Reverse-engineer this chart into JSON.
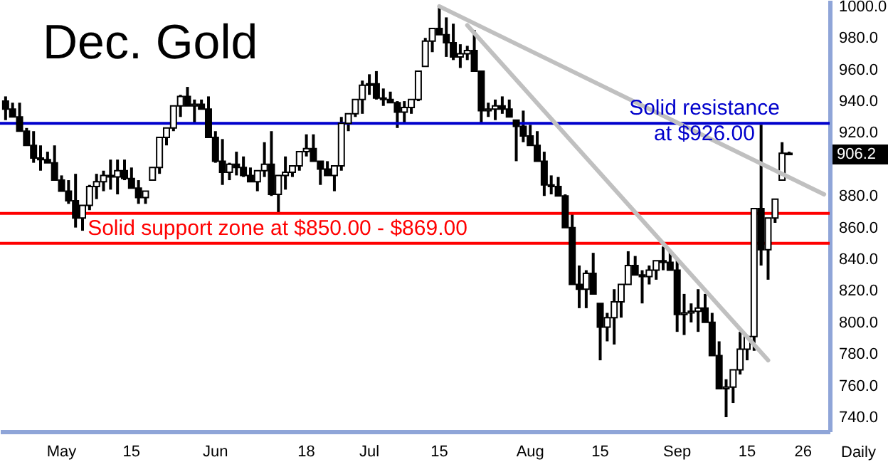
{
  "chart_data": {
    "type": "candlestick",
    "title": "Dec. Gold",
    "xlabel": "Daily",
    "categories": [
      null,
      null,
      null,
      null,
      null,
      null,
      null,
      null,
      "May",
      null,
      null,
      null,
      null,
      null,
      null,
      null,
      null,
      null,
      "15",
      null,
      null,
      null,
      null,
      null,
      null,
      null,
      null,
      null,
      null,
      null,
      "Jun",
      null,
      null,
      null,
      null,
      null,
      null,
      null,
      null,
      null,
      null,
      null,
      null,
      "18",
      null,
      null,
      null,
      null,
      null,
      null,
      null,
      null,
      "Jul",
      null,
      null,
      null,
      null,
      null,
      null,
      null,
      null,
      null,
      "15",
      null,
      null,
      null,
      null,
      null,
      null,
      null,
      null,
      null,
      null,
      null,
      null,
      "Aug",
      null,
      null,
      null,
      null,
      null,
      null,
      null,
      null,
      null,
      "15",
      null,
      null,
      null,
      null,
      null,
      null,
      null,
      null,
      null,
      null,
      "Sep",
      null,
      null,
      null,
      null,
      null,
      null,
      null,
      null,
      null,
      "15",
      null,
      null,
      null,
      null,
      null,
      null,
      null,
      "26",
      null,
      null,
      null
    ],
    "ohlc": [
      [
        940,
        943,
        928,
        935
      ],
      [
        935,
        939,
        930,
        930
      ],
      [
        930,
        939,
        921,
        921
      ],
      [
        921,
        923,
        912,
        912
      ],
      [
        912,
        921,
        901,
        904
      ],
      [
        904,
        912,
        896,
        903
      ],
      [
        903,
        908,
        901,
        901
      ],
      [
        901,
        912,
        890,
        890
      ],
      [
        890,
        893,
        883,
        883
      ],
      [
        883,
        890,
        875,
        877
      ],
      [
        877,
        894,
        860,
        866
      ],
      [
        866,
        874,
        858,
        874
      ],
      [
        874,
        887,
        871,
        886
      ],
      [
        886,
        894,
        878,
        889
      ],
      [
        889,
        896,
        883,
        893
      ],
      [
        893,
        903,
        884,
        892
      ],
      [
        892,
        903,
        881,
        896
      ],
      [
        896,
        903,
        890,
        891
      ],
      [
        891,
        898,
        885,
        885
      ],
      [
        885,
        890,
        875,
        879
      ],
      [
        879,
        883,
        875,
        883
      ],
      [
        890,
        898,
        890,
        898
      ],
      [
        898,
        917,
        894,
        917
      ],
      [
        917,
        923,
        912,
        923
      ],
      [
        923,
        937,
        921,
        937
      ],
      [
        937,
        944,
        930,
        943
      ],
      [
        943,
        949,
        937,
        937
      ],
      [
        937,
        941,
        926,
        938
      ],
      [
        938,
        941,
        935,
        935
      ],
      [
        935,
        943,
        917,
        917
      ],
      [
        917,
        921,
        901,
        902
      ],
      [
        902,
        916,
        887,
        895
      ],
      [
        895,
        901,
        890,
        900
      ],
      [
        900,
        908,
        893,
        898
      ],
      [
        898,
        905,
        892,
        893
      ],
      [
        893,
        898,
        889,
        889
      ],
      [
        889,
        896,
        883,
        896
      ],
      [
        896,
        914,
        892,
        900
      ],
      [
        900,
        921,
        880,
        881
      ],
      [
        881,
        893,
        869,
        893
      ],
      [
        893,
        905,
        884,
        895
      ],
      [
        895,
        899,
        892,
        899
      ],
      [
        899,
        908,
        896,
        908
      ],
      [
        908,
        919,
        905,
        910
      ],
      [
        910,
        919,
        902,
        902
      ],
      [
        902,
        902,
        887,
        897
      ],
      [
        897,
        902,
        893,
        893
      ],
      [
        893,
        899,
        883,
        899
      ],
      [
        899,
        930,
        896,
        926
      ],
      [
        926,
        932,
        921,
        932
      ],
      [
        932,
        941,
        930,
        941
      ],
      [
        941,
        953,
        932,
        950
      ],
      [
        950,
        957,
        944,
        951
      ],
      [
        951,
        959,
        941,
        942
      ],
      [
        942,
        948,
        937,
        941
      ],
      [
        941,
        946,
        939,
        939
      ],
      [
        939,
        940,
        923,
        933
      ],
      [
        933,
        940,
        926,
        936
      ],
      [
        936,
        941,
        932,
        941
      ],
      [
        941,
        959,
        940,
        959
      ],
      [
        962,
        980,
        962,
        978
      ],
      [
        978,
        986,
        971,
        986
      ],
      [
        986,
        1000,
        982,
        982
      ],
      [
        982,
        993,
        968,
        977
      ],
      [
        977,
        989,
        966,
        968
      ],
      [
        968,
        976,
        961,
        970
      ],
      [
        970,
        975,
        966,
        972
      ],
      [
        972,
        985,
        959,
        959
      ],
      [
        959,
        959,
        926,
        934
      ],
      [
        934,
        939,
        930,
        935
      ],
      [
        935,
        941,
        928,
        937
      ],
      [
        937,
        943,
        932,
        935
      ],
      [
        935,
        941,
        930,
        930
      ],
      [
        928,
        928,
        902,
        924
      ],
      [
        924,
        934,
        914,
        918
      ],
      [
        918,
        925,
        912,
        912
      ],
      [
        912,
        921,
        902,
        902
      ],
      [
        902,
        908,
        880,
        887
      ],
      [
        887,
        893,
        881,
        886
      ],
      [
        886,
        892,
        880,
        880
      ],
      [
        880,
        881,
        860,
        860
      ],
      [
        860,
        869,
        824,
        824
      ],
      [
        824,
        836,
        809,
        821
      ],
      [
        821,
        833,
        809,
        831
      ],
      [
        831,
        844,
        818,
        818
      ],
      [
        812,
        812,
        776,
        797
      ],
      [
        797,
        806,
        788,
        803
      ],
      [
        803,
        821,
        786,
        813
      ],
      [
        813,
        824,
        803,
        824
      ],
      [
        824,
        845,
        824,
        836
      ],
      [
        836,
        842,
        830,
        830
      ],
      [
        830,
        833,
        812,
        829
      ],
      [
        829,
        836,
        824,
        833
      ],
      [
        833,
        839,
        827,
        839
      ],
      [
        839,
        848,
        833,
        838
      ],
      [
        838,
        845,
        833,
        833
      ],
      [
        833,
        839,
        794,
        805
      ],
      [
        805,
        818,
        792,
        806
      ],
      [
        806,
        812,
        800,
        807
      ],
      [
        807,
        821,
        794,
        809
      ],
      [
        809,
        818,
        800,
        800
      ],
      [
        800,
        806,
        779,
        779
      ],
      [
        779,
        788,
        758,
        758
      ],
      [
        758,
        764,
        740,
        759
      ],
      [
        759,
        770,
        749,
        770
      ],
      [
        770,
        794,
        767,
        783
      ],
      [
        783,
        791,
        776,
        791
      ],
      [
        791,
        872,
        782,
        872
      ],
      [
        872,
        925,
        836,
        846
      ],
      [
        846,
        866,
        827,
        866
      ],
      [
        866,
        878,
        863,
        878
      ],
      [
        890,
        914,
        890,
        907
      ],
      [
        907,
        908,
        906,
        906.2
      ],
      null,
      null,
      null,
      null,
      null
    ],
    "series": [
      {
        "type": "line",
        "color": "#c0c0c0",
        "values": [
          null,
          null,
          null,
          null,
          null,
          null,
          null,
          null,
          null,
          null,
          null,
          null,
          null,
          null,
          null,
          null,
          null,
          null,
          null,
          null,
          null,
          null,
          null,
          null,
          null,
          null,
          null,
          null,
          null,
          null,
          null,
          null,
          null,
          null,
          null,
          null,
          null,
          null,
          null,
          null,
          null,
          null,
          null,
          null,
          null,
          null,
          null,
          null,
          null,
          null,
          null,
          null,
          null,
          null,
          null,
          null,
          null,
          null,
          null,
          null,
          null,
          null,
          1000,
          null,
          null,
          null,
          null,
          null,
          null,
          null,
          null,
          null,
          null,
          null,
          null,
          null,
          null,
          null,
          null,
          null,
          null,
          null,
          null,
          null,
          null,
          null,
          null,
          null,
          null,
          null,
          null,
          null,
          null,
          null,
          null,
          null,
          null,
          null,
          null,
          null,
          null,
          null,
          null,
          null,
          null,
          null,
          null,
          null,
          null,
          null,
          null,
          null,
          null,
          null,
          null,
          null,
          null,
          881
        ]
      },
      {
        "type": "line",
        "color": "#c0c0c0",
        "values": [
          null,
          null,
          null,
          null,
          null,
          null,
          null,
          null,
          null,
          null,
          null,
          null,
          null,
          null,
          null,
          null,
          null,
          null,
          null,
          null,
          null,
          null,
          null,
          null,
          null,
          null,
          null,
          null,
          null,
          null,
          null,
          null,
          null,
          null,
          null,
          null,
          null,
          null,
          null,
          null,
          null,
          null,
          null,
          null,
          null,
          null,
          null,
          null,
          null,
          null,
          null,
          null,
          null,
          null,
          null,
          null,
          null,
          null,
          null,
          null,
          null,
          null,
          null,
          null,
          null,
          null,
          988,
          null,
          null,
          null,
          null,
          null,
          null,
          null,
          null,
          null,
          null,
          null,
          null,
          null,
          null,
          null,
          null,
          null,
          null,
          null,
          null,
          null,
          null,
          null,
          null,
          null,
          null,
          null,
          null,
          null,
          null,
          null,
          null,
          null,
          null,
          null,
          null,
          null,
          null,
          null,
          null,
          null,
          null,
          776,
          null,
          null,
          null,
          null,
          null,
          null,
          null,
          null
        ]
      }
    ],
    "ylim": [
      731,
      1004
    ],
    "yticks": [
      {
        "value": 740,
        "label": "740.0"
      },
      {
        "value": 760,
        "label": "760.0"
      },
      {
        "value": 780,
        "label": "780.0"
      },
      {
        "value": 800,
        "label": "800.0"
      },
      {
        "value": 820,
        "label": "820.0"
      },
      {
        "value": 840,
        "label": "840.0"
      },
      {
        "value": 860,
        "label": "860.0"
      },
      {
        "value": 880,
        "label": "880.0"
      },
      {
        "value": 920,
        "label": "920.0"
      },
      {
        "value": 940,
        "label": "940.0"
      },
      {
        "value": 960,
        "label": "960.0"
      },
      {
        "value": 980,
        "label": "980.0"
      },
      {
        "value": 1000,
        "label": "1000.0"
      }
    ],
    "ref_lines": [
      {
        "axis": "y",
        "value": 926,
        "label": "Solid resistance at $926.00",
        "color": "#0000cc"
      },
      {
        "axis": "y",
        "value": 869,
        "color": "#ff0000"
      },
      {
        "axis": "y",
        "value": 850,
        "label": "Solid support zone at $850.00 - $869.00",
        "color": "#ff0000"
      }
    ],
    "annotations": [
      "906.2"
    ]
  }
}
